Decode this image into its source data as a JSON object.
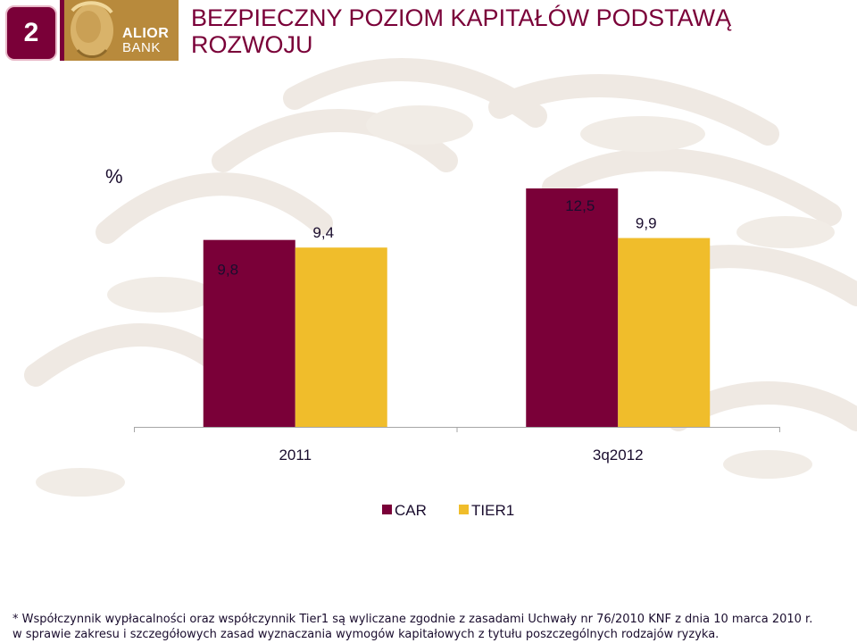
{
  "slide": {
    "page_number": "2",
    "title_line1": "BEZPIECZNY POZIOM KAPITAŁÓW PODSTAWĄ",
    "title_line2": "ROZWOJU"
  },
  "logo": {
    "line1": "ALIOR",
    "line2": "BANK"
  },
  "footnote": {
    "line1": "* Współczynnik wypłacalności oraz współczynnik Tier1 są wyliczane zgodnie z zasadami Uchwały nr 76/2010 KNF z dnia 10 marca 2010 r.",
    "line2": "w sprawie zakresu i szczegółowych zasad wyznaczania wymogów kapitałowych z tytułu poszczególnych rodzajów ryzyka."
  },
  "colors": {
    "brand": "#7a0038",
    "car": "#7a0038",
    "tier1": "#f0bd2b",
    "logo_gold": "#b88a3c"
  },
  "chart_data": {
    "type": "bar",
    "unit_label": "%",
    "categories": [
      "2011",
      "3q2012"
    ],
    "series": [
      {
        "name": "CAR",
        "values": [
          9.8,
          12.5
        ],
        "labels": [
          "9,8",
          "12,5"
        ],
        "color": "#7a0038"
      },
      {
        "name": "TIER1",
        "values": [
          9.4,
          9.9
        ],
        "labels": [
          "9,4",
          "9,9"
        ],
        "color": "#f0bd2b"
      }
    ],
    "legend_position": "bottom-center",
    "grid": false
  }
}
